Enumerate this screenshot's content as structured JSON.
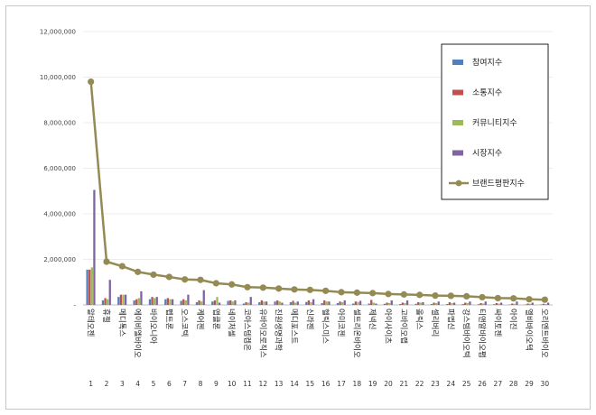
{
  "chart_data": {
    "type": "bar",
    "title": "",
    "xlabel": "",
    "ylabel": "",
    "ylim": [
      0,
      12000000
    ],
    "yticks": [
      0,
      2000000,
      4000000,
      6000000,
      8000000,
      10000000,
      12000000
    ],
    "ytick_labels": [
      "-",
      "2,000,000",
      "4,000,000",
      "6,000,000",
      "8,000,000",
      "10,000,000",
      "12,000,000"
    ],
    "grid": true,
    "legend_position": "right",
    "categories": [
      "알테오젠",
      "휴젤",
      "메디톡스",
      "에이비엘바이오",
      "바이오니아",
      "펩트론",
      "오스코텍",
      "케어젠",
      "앱클론",
      "네이처셀",
      "코아스템켐온",
      "유바이오로직스",
      "진원생명과학",
      "메디포스트",
      "신라젠",
      "헬릭스미스",
      "아미코젠",
      "셀트리온바이오",
      "제넥신",
      "아이사이츠",
      "고바이오랩",
      "올릭스",
      "셀리버리",
      "파멥신",
      "강스템바이오텍",
      "티앤알바이오팹",
      "싸이토젠",
      "아이진",
      "엘비바이오텍",
      "오리엔트바이오"
    ],
    "category_numbers": [
      "1",
      "2",
      "3",
      "4",
      "5",
      "6",
      "7",
      "8",
      "9",
      "10",
      "11",
      "12",
      "13",
      "14",
      "15",
      "16",
      "17",
      "18",
      "19",
      "20",
      "21",
      "22",
      "23",
      "24",
      "25",
      "26",
      "27",
      "28",
      "29",
      "30"
    ],
    "series": [
      {
        "name": "참여지수",
        "type": "bar",
        "color": "#4f81bd",
        "values": [
          1550000,
          200000,
          350000,
          200000,
          250000,
          250000,
          180000,
          120000,
          150000,
          180000,
          60000,
          120000,
          150000,
          120000,
          130000,
          80000,
          80000,
          60000,
          60000,
          50000,
          40000,
          50000,
          40000,
          40000,
          40000,
          30000,
          30000,
          20000,
          20000,
          20000
        ]
      },
      {
        "name": "소통지수",
        "type": "bar",
        "color": "#c0504d",
        "values": [
          1550000,
          300000,
          450000,
          250000,
          350000,
          300000,
          250000,
          200000,
          200000,
          200000,
          120000,
          200000,
          200000,
          180000,
          200000,
          200000,
          150000,
          150000,
          220000,
          100000,
          100000,
          120000,
          100000,
          120000,
          100000,
          80000,
          80000,
          60000,
          60000,
          50000
        ]
      },
      {
        "name": "커뮤니티지수",
        "type": "bar",
        "color": "#9bbb59",
        "values": [
          1650000,
          250000,
          450000,
          300000,
          300000,
          250000,
          200000,
          150000,
          350000,
          150000,
          100000,
          150000,
          150000,
          100000,
          120000,
          150000,
          120000,
          130000,
          100000,
          80000,
          80000,
          100000,
          80000,
          80000,
          80000,
          60000,
          60000,
          50000,
          50000,
          40000
        ]
      },
      {
        "name": "시장지수",
        "type": "bar",
        "color": "#8064a2",
        "values": [
          5050000,
          1100000,
          450000,
          600000,
          350000,
          250000,
          450000,
          650000,
          100000,
          200000,
          350000,
          150000,
          100000,
          150000,
          250000,
          150000,
          200000,
          180000,
          60000,
          200000,
          200000,
          120000,
          150000,
          100000,
          150000,
          150000,
          100000,
          150000,
          100000,
          100000
        ]
      },
      {
        "name": "브랜드평판지수",
        "type": "line",
        "color": "#948a54",
        "values": [
          9800000,
          1900000,
          1700000,
          1450000,
          1330000,
          1230000,
          1120000,
          1100000,
          950000,
          900000,
          780000,
          760000,
          720000,
          680000,
          660000,
          620000,
          560000,
          540000,
          520000,
          480000,
          460000,
          440000,
          410000,
          400000,
          380000,
          340000,
          300000,
          290000,
          250000,
          230000
        ]
      }
    ]
  }
}
